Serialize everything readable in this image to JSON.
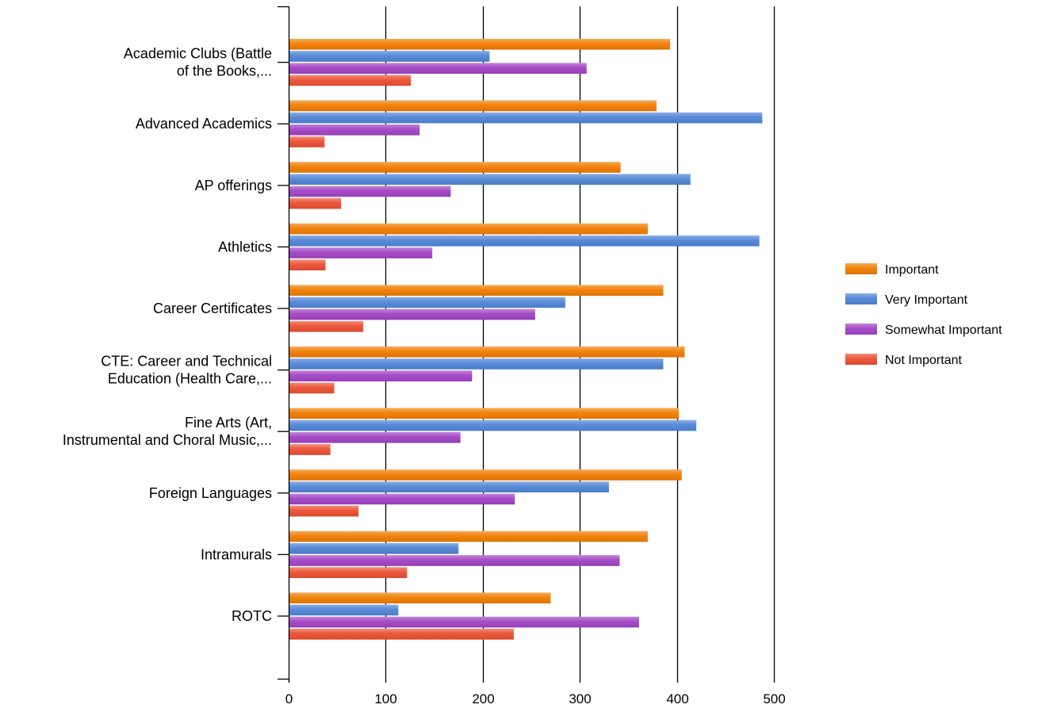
{
  "chart_data": {
    "type": "bar",
    "orientation": "horizontal",
    "title": "",
    "xlabel": "",
    "ylabel": "",
    "xlim": [
      0,
      500
    ],
    "x_ticks": [
      0,
      100,
      200,
      300,
      400,
      500
    ],
    "grid": true,
    "legend_position": "right",
    "categories": [
      [
        "Academic Clubs (Battle",
        "of the Books,..."
      ],
      [
        "Advanced Academics"
      ],
      [
        "AP offerings"
      ],
      [
        "Athletics"
      ],
      [
        "Career Certificates"
      ],
      [
        "CTE: Career and Technical",
        "Education (Health Care,..."
      ],
      [
        "Fine Arts (Art,",
        "Instrumental and Choral Music,..."
      ],
      [
        "Foreign Languages"
      ],
      [
        "Intramurals"
      ],
      [
        "ROTC"
      ]
    ],
    "series": [
      {
        "name": "Important",
        "color": "#f07c00",
        "values": [
          393,
          379,
          342,
          370,
          386,
          408,
          402,
          405,
          370,
          270
        ]
      },
      {
        "name": "Very Important",
        "color": "#4f84d6",
        "values": [
          207,
          488,
          414,
          485,
          285,
          386,
          420,
          330,
          175,
          113
        ]
      },
      {
        "name": "Somewhat Important",
        "color": "#a142c4",
        "values": [
          307,
          135,
          167,
          148,
          254,
          189,
          177,
          233,
          341,
          361
        ]
      },
      {
        "name": "Not Important",
        "color": "#eb4f31",
        "values": [
          126,
          37,
          54,
          38,
          77,
          47,
          43,
          72,
          122,
          232
        ]
      }
    ]
  }
}
